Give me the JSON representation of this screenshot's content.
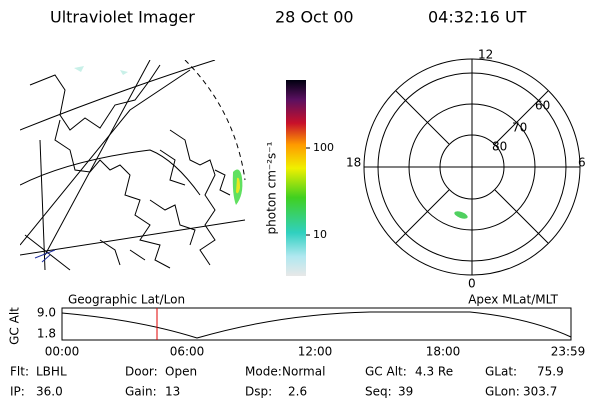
{
  "header": {
    "instrument": "Ultraviolet Imager",
    "date": "28 Oct 00",
    "time": "04:32:16 UT"
  },
  "colorbar": {
    "label": "photon cm⁻²s⁻¹",
    "ticks": [
      "100",
      "10"
    ]
  },
  "left_panel": {
    "title": "Geographic Lat/Lon"
  },
  "right_panel": {
    "title": "Apex MLat/MLT",
    "mlt_labels": [
      "12",
      "18",
      "6",
      "0"
    ],
    "mlat_labels": [
      "60",
      "70",
      "80"
    ]
  },
  "altitude_plot": {
    "ylabel": "GC Alt",
    "yticks": [
      "9.0",
      "1.8"
    ],
    "xticks": [
      "00:00",
      "06:00",
      "12:00",
      "18:00",
      "23:59"
    ]
  },
  "info": [
    [
      {
        "label": "Flt:",
        "value": "LBHL"
      },
      {
        "label": "Door:",
        "value": "Open"
      },
      {
        "label": "Mode:",
        "value": "Normal"
      },
      {
        "label": "GC Alt:",
        "value": "4.3 Re"
      },
      {
        "label": "GLat:",
        "value": "75.9"
      }
    ],
    [
      {
        "label": "IP:",
        "value": "36.0"
      },
      {
        "label": "Gain:",
        "value": "13"
      },
      {
        "label": "Dsp:",
        "value": "2.6"
      },
      {
        "label": "Seq:",
        "value": "39"
      },
      {
        "label": "GLon:",
        "value": "303.7"
      }
    ]
  ]
}
